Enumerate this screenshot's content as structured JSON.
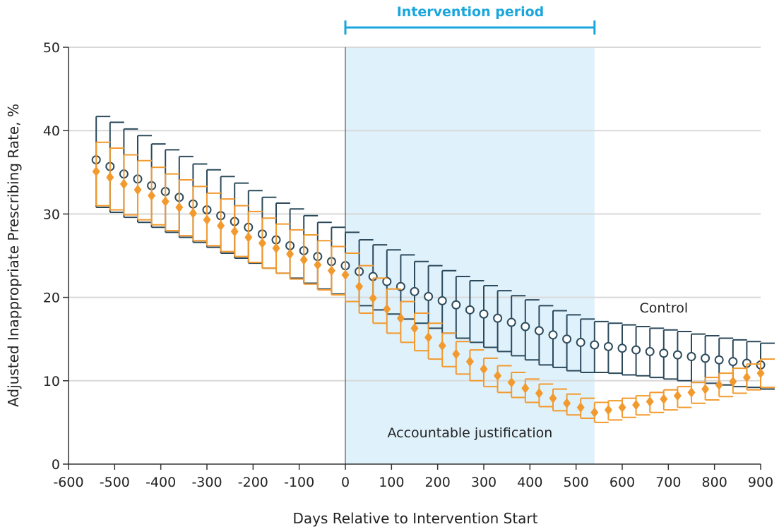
{
  "chart_data": {
    "type": "scatter",
    "title": "",
    "xlabel": "Days Relative to Intervention Start",
    "ylabel": "Adjusted Inappropriate Prescribing Rate, %",
    "xlim": [
      -600,
      900
    ],
    "ylim": [
      0,
      50
    ],
    "x_ticks": [
      -600,
      -500,
      -400,
      -300,
      -200,
      -100,
      0,
      100,
      200,
      300,
      400,
      500,
      600,
      700,
      800,
      900
    ],
    "x_tick_labels": [
      "-600",
      "-500",
      "-400",
      "-300",
      "-200",
      "-100",
      "0",
      "100",
      "200",
      "300",
      "400",
      "500",
      "600",
      "700",
      "800",
      "900"
    ],
    "y_ticks": [
      0,
      10,
      20,
      30,
      40,
      50
    ],
    "y_tick_labels": [
      "0",
      "10",
      "20",
      "30",
      "40",
      "50"
    ],
    "grid": "horizontal",
    "shaded_region": {
      "label": "Intervention period",
      "x_start": 0,
      "x_end": 540,
      "color": "#dff1fb"
    },
    "reference_line_x": 0,
    "annotations": [
      {
        "text": "Control",
        "x": 690,
        "y": 18.2
      },
      {
        "text": "Accountable justification",
        "x": 270,
        "y": 3.2
      }
    ],
    "colors": {
      "control": "#2c4a5c",
      "intervention": "#f29a2e",
      "period": "#19a6dc",
      "grid": "#d9d9d9"
    },
    "series": [
      {
        "name": "Control",
        "marker": "open-circle",
        "x": [
          -540,
          -510,
          -480,
          -450,
          -420,
          -390,
          -360,
          -330,
          -300,
          -270,
          -240,
          -210,
          -180,
          -150,
          -120,
          -90,
          -60,
          -30,
          0,
          30,
          60,
          90,
          120,
          150,
          180,
          210,
          240,
          270,
          300,
          330,
          360,
          390,
          420,
          450,
          480,
          510,
          540,
          570,
          600,
          630,
          660,
          690,
          720,
          750,
          780,
          810,
          840,
          870,
          900
        ],
        "y": [
          36.5,
          35.7,
          34.8,
          34.2,
          33.4,
          32.7,
          32.0,
          31.2,
          30.5,
          29.8,
          29.1,
          28.4,
          27.6,
          26.9,
          26.2,
          25.6,
          24.9,
          24.3,
          23.8,
          23.1,
          22.5,
          21.9,
          21.3,
          20.7,
          20.1,
          19.6,
          19.1,
          18.5,
          18.0,
          17.5,
          17.0,
          16.5,
          16.0,
          15.5,
          15.0,
          14.6,
          14.3,
          14.1,
          13.9,
          13.7,
          13.5,
          13.3,
          13.1,
          12.9,
          12.7,
          12.5,
          12.3,
          12.1,
          11.9
        ],
        "lower": [
          30.8,
          30.2,
          29.6,
          29.0,
          28.4,
          27.8,
          27.2,
          26.6,
          26.0,
          25.3,
          24.7,
          24.1,
          23.5,
          22.9,
          22.3,
          21.7,
          21.0,
          20.4,
          19.5,
          19.0,
          18.5,
          18.0,
          17.4,
          16.9,
          16.3,
          15.7,
          15.1,
          14.6,
          14.0,
          13.5,
          13.0,
          12.5,
          11.9,
          11.6,
          11.2,
          11.0,
          11.0,
          10.9,
          10.7,
          10.6,
          10.4,
          10.2,
          10.0,
          9.8,
          9.7,
          9.5,
          9.3,
          9.2,
          9.0
        ],
        "upper": [
          41.7,
          41.0,
          40.2,
          39.4,
          38.4,
          37.7,
          36.9,
          36.0,
          35.3,
          34.5,
          33.7,
          32.8,
          32.0,
          31.3,
          30.6,
          29.8,
          29.0,
          28.4,
          27.8,
          26.9,
          26.3,
          25.7,
          25.1,
          24.3,
          23.8,
          23.2,
          22.5,
          22.0,
          21.4,
          20.8,
          20.2,
          19.7,
          19.0,
          18.4,
          17.9,
          17.4,
          17.1,
          16.9,
          16.7,
          16.5,
          16.3,
          16.1,
          15.9,
          15.6,
          15.4,
          15.1,
          14.9,
          14.7,
          14.5
        ]
      },
      {
        "name": "Accountable justification",
        "marker": "filled-diamond",
        "x": [
          -540,
          -510,
          -480,
          -450,
          -420,
          -390,
          -360,
          -330,
          -300,
          -270,
          -240,
          -210,
          -180,
          -150,
          -120,
          -90,
          -60,
          -30,
          0,
          30,
          60,
          90,
          120,
          150,
          180,
          210,
          240,
          270,
          300,
          330,
          360,
          390,
          420,
          450,
          480,
          510,
          540,
          570,
          600,
          630,
          660,
          690,
          720,
          750,
          780,
          810,
          840,
          870,
          900
        ],
        "y": [
          35.1,
          34.4,
          33.6,
          32.9,
          32.2,
          31.5,
          30.8,
          30.1,
          29.3,
          28.6,
          27.9,
          27.2,
          26.5,
          25.9,
          25.2,
          24.5,
          23.9,
          23.2,
          22.7,
          21.3,
          19.9,
          18.6,
          17.5,
          16.3,
          15.2,
          14.2,
          13.2,
          12.3,
          11.4,
          10.6,
          9.8,
          9.1,
          8.5,
          7.9,
          7.3,
          6.8,
          6.2,
          6.5,
          6.8,
          7.1,
          7.5,
          7.8,
          8.2,
          8.6,
          9.0,
          9.5,
          9.9,
          10.4,
          10.9
        ],
        "lower": [
          31.0,
          30.5,
          29.9,
          29.3,
          28.7,
          28.0,
          27.4,
          26.8,
          26.2,
          25.5,
          24.9,
          24.2,
          23.5,
          22.9,
          22.2,
          21.6,
          20.9,
          20.3,
          19.5,
          18.1,
          16.9,
          15.7,
          14.6,
          13.6,
          12.6,
          11.7,
          10.8,
          10.0,
          9.3,
          8.6,
          8.0,
          7.4,
          6.9,
          6.4,
          5.9,
          5.5,
          5.0,
          5.3,
          5.6,
          5.9,
          6.2,
          6.5,
          6.8,
          7.3,
          7.7,
          8.1,
          8.5,
          8.9,
          9.2
        ],
        "upper": [
          38.6,
          37.9,
          37.1,
          36.4,
          35.6,
          34.8,
          34.1,
          33.3,
          32.5,
          31.8,
          31.0,
          30.3,
          29.5,
          28.8,
          28.1,
          27.5,
          26.8,
          26.1,
          25.3,
          23.8,
          22.3,
          21.0,
          19.5,
          18.1,
          16.9,
          15.7,
          14.7,
          13.7,
          12.7,
          11.8,
          11.0,
          10.2,
          9.6,
          9.0,
          8.4,
          7.9,
          7.4,
          7.6,
          7.9,
          8.2,
          8.6,
          8.9,
          9.3,
          9.8,
          10.4,
          10.9,
          11.5,
          12.0,
          12.6
        ]
      }
    ]
  }
}
